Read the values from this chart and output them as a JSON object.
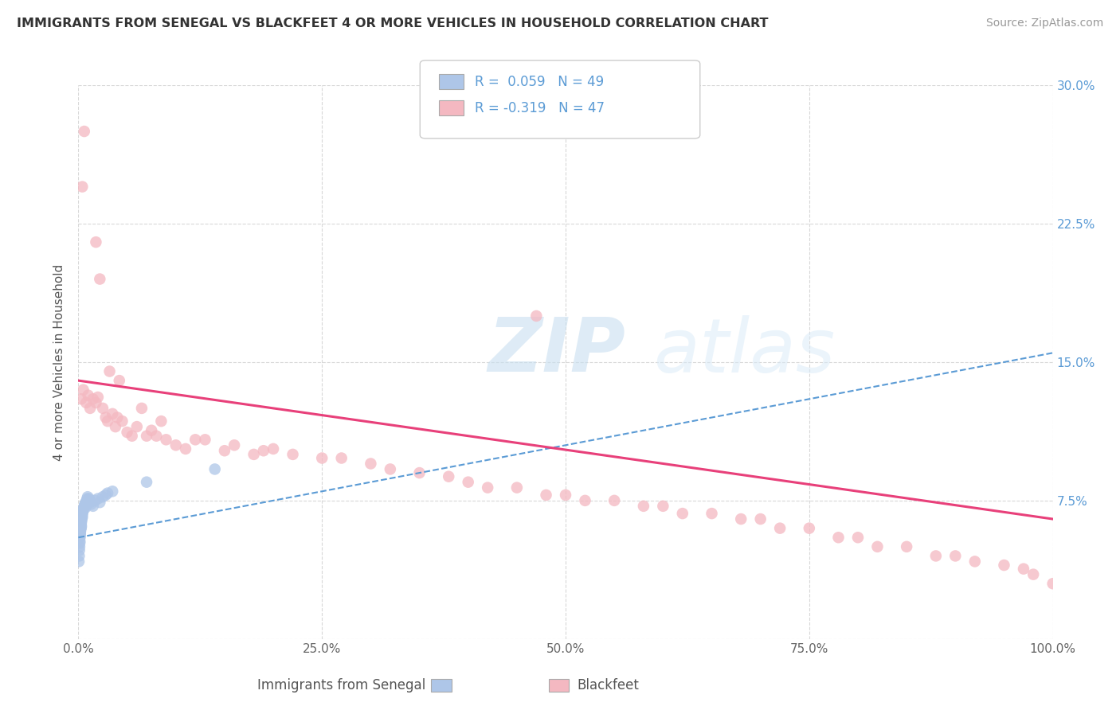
{
  "title": "IMMIGRANTS FROM SENEGAL VS BLACKFEET 4 OR MORE VEHICLES IN HOUSEHOLD CORRELATION CHART",
  "source": "Source: ZipAtlas.com",
  "ylabel": "4 or more Vehicles in Household",
  "xlim": [
    0,
    100
  ],
  "ylim": [
    0,
    30
  ],
  "xticks": [
    0,
    25,
    50,
    75,
    100
  ],
  "xticklabels": [
    "0.0%",
    "25.0%",
    "50.0%",
    "75.0%",
    "100.0%"
  ],
  "yticks": [
    0,
    7.5,
    15.0,
    22.5,
    30.0
  ],
  "yticklabels_right": [
    "",
    "7.5%",
    "15.0%",
    "22.5%",
    "30.0%"
  ],
  "legend_R": [
    0.059,
    -0.319
  ],
  "legend_N": [
    49,
    47
  ],
  "legend_labels": [
    "Immigrants from Senegal",
    "Blackfeet"
  ],
  "senegal_color": "#aec6e8",
  "blackfeet_color": "#f4b8c1",
  "senegal_line_color": "#5b9bd5",
  "blackfeet_line_color": "#e8407a",
  "background_color": "#ffffff",
  "grid_color": "#d8d8d8",
  "senegal_x": [
    0.05,
    0.08,
    0.1,
    0.12,
    0.14,
    0.15,
    0.16,
    0.18,
    0.19,
    0.2,
    0.22,
    0.24,
    0.25,
    0.26,
    0.28,
    0.29,
    0.3,
    0.32,
    0.34,
    0.35,
    0.38,
    0.4,
    0.42,
    0.45,
    0.48,
    0.5,
    0.55,
    0.6,
    0.65,
    0.7,
    0.75,
    0.8,
    0.85,
    0.9,
    0.95,
    1.0,
    1.1,
    1.2,
    1.3,
    1.5,
    1.7,
    2.0,
    2.2,
    2.5,
    2.8,
    3.0,
    3.5,
    7.0,
    14.0
  ],
  "senegal_y": [
    4.2,
    4.5,
    4.8,
    5.0,
    5.2,
    5.3,
    5.5,
    5.6,
    5.7,
    5.8,
    5.9,
    6.0,
    6.1,
    6.0,
    6.2,
    6.3,
    6.1,
    6.4,
    6.5,
    6.6,
    6.7,
    6.6,
    6.8,
    6.9,
    7.0,
    7.0,
    7.1,
    7.2,
    7.3,
    7.1,
    7.4,
    7.3,
    7.5,
    7.6,
    7.7,
    7.5,
    7.6,
    7.4,
    7.3,
    7.2,
    7.5,
    7.6,
    7.4,
    7.7,
    7.8,
    7.9,
    8.0,
    8.5,
    9.2
  ],
  "blackfeet_x": [
    0.3,
    0.5,
    0.8,
    1.0,
    1.2,
    1.5,
    1.8,
    2.0,
    2.5,
    2.8,
    3.0,
    3.5,
    3.8,
    4.0,
    4.5,
    5.0,
    5.5,
    6.0,
    7.0,
    7.5,
    8.0,
    9.0,
    10.0,
    11.0,
    12.0,
    15.0,
    16.0,
    18.0,
    20.0,
    22.0,
    25.0,
    30.0,
    32.0,
    35.0,
    40.0,
    45.0,
    47.0,
    50.0,
    55.0,
    60.0,
    65.0,
    70.0,
    75.0,
    80.0,
    85.0,
    90.0,
    95.0
  ],
  "blackfeet_y": [
    13.0,
    13.5,
    12.8,
    13.2,
    12.5,
    13.0,
    12.8,
    13.1,
    12.5,
    12.0,
    11.8,
    12.2,
    11.5,
    12.0,
    11.8,
    11.2,
    11.0,
    11.5,
    11.0,
    11.3,
    11.0,
    10.8,
    10.5,
    10.3,
    10.8,
    10.2,
    10.5,
    10.0,
    10.3,
    10.0,
    9.8,
    9.5,
    9.2,
    9.0,
    8.5,
    8.2,
    17.5,
    7.8,
    7.5,
    7.2,
    6.8,
    6.5,
    6.0,
    5.5,
    5.0,
    4.5,
    4.0
  ],
  "blackfeet_extra_x": [
    0.4,
    0.6,
    1.8,
    2.2,
    3.2,
    4.2,
    6.5,
    8.5,
    13.0,
    19.0,
    27.0,
    38.0,
    42.0,
    48.0,
    52.0,
    58.0,
    62.0,
    68.0,
    72.0,
    78.0,
    82.0,
    88.0,
    92.0,
    97.0,
    98.0,
    100.0
  ],
  "blackfeet_extra_y": [
    24.5,
    27.5,
    21.5,
    19.5,
    14.5,
    14.0,
    12.5,
    11.8,
    10.8,
    10.2,
    9.8,
    8.8,
    8.2,
    7.8,
    7.5,
    7.2,
    6.8,
    6.5,
    6.0,
    5.5,
    5.0,
    4.5,
    4.2,
    3.8,
    3.5,
    3.0
  ],
  "senegal_trend_x": [
    0,
    100
  ],
  "senegal_trend_y": [
    5.5,
    15.5
  ],
  "blackfeet_trend_x": [
    0,
    100
  ],
  "blackfeet_trend_y": [
    14.0,
    6.5
  ]
}
